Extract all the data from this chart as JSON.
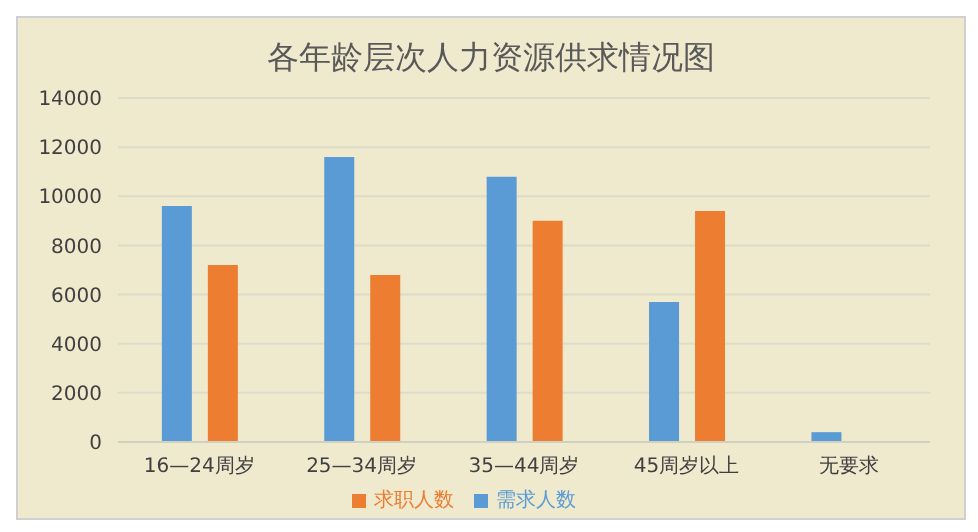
{
  "chart_data": {
    "type": "bar",
    "title": "各年龄层次人力资源供求情况图",
    "categories": [
      "16—24周岁",
      "25—34周岁",
      "35—44周岁",
      "45周岁以上",
      "无要求"
    ],
    "series": [
      {
        "name": "需求人数",
        "color": "#5b9bd5",
        "values": [
          9600,
          11600,
          10800,
          5700,
          400
        ]
      },
      {
        "name": "求职人数",
        "color": "#ed7d31",
        "values": [
          7200,
          6800,
          9000,
          9400,
          null
        ]
      }
    ],
    "ylim": [
      0,
      14000
    ],
    "yticks": [
      0,
      2000,
      4000,
      6000,
      8000,
      10000,
      12000,
      14000
    ],
    "grid": "y",
    "legend": "bottom"
  }
}
